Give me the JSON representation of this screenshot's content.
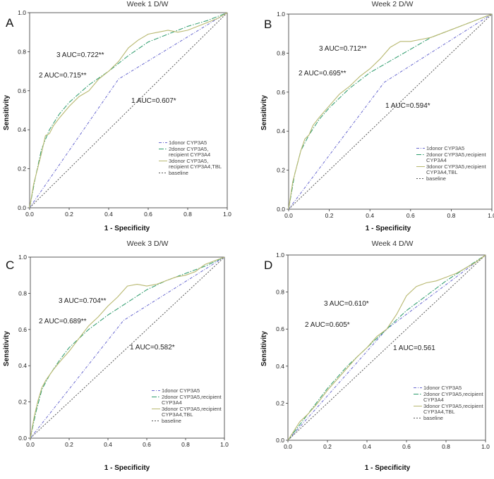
{
  "chart_data": [
    {
      "type": "line",
      "letter": "A",
      "title": "Week 1 D/W",
      "xlabel": "1 - Specificity",
      "ylabel": "Sensitivity",
      "xlim": [
        0,
        1
      ],
      "ylim": [
        0,
        1
      ],
      "ticks": [
        "0.0",
        "0.2",
        "0.4",
        "0.6",
        "0.8",
        "1.0"
      ],
      "annotations": [
        "3 AUC=0.722**",
        "2 AUC=0.715**",
        "1 AUC=0.607*"
      ],
      "legend": [
        [
          "1donor CYP3A5"
        ],
        [
          "2donor CYP3A5,",
          "recipient CYP3A4"
        ],
        [
          "3donor CYP3A5,",
          "recipient CYP3A4,TBL"
        ],
        [
          "baseline"
        ]
      ],
      "series": [
        {
          "name": "1",
          "color": "#6a6ad0",
          "x": [
            0,
            0.45,
            1
          ],
          "y": [
            0,
            0.66,
            1
          ]
        },
        {
          "name": "2",
          "color": "#2a9a6a",
          "x": [
            0,
            0.03,
            0.06,
            0.1,
            0.15,
            0.2,
            0.3,
            0.4,
            0.5,
            0.6,
            0.7,
            0.8,
            0.9,
            1
          ],
          "y": [
            0,
            0.16,
            0.3,
            0.4,
            0.48,
            0.54,
            0.63,
            0.7,
            0.78,
            0.85,
            0.89,
            0.93,
            0.96,
            1
          ]
        },
        {
          "name": "3",
          "color": "#b8b870",
          "x": [
            0,
            0.02,
            0.04,
            0.06,
            0.08,
            0.1,
            0.12,
            0.15,
            0.2,
            0.25,
            0.3,
            0.35,
            0.4,
            0.45,
            0.5,
            0.55,
            0.6,
            0.65,
            0.7,
            0.75,
            0.8,
            0.85,
            0.9,
            0.95,
            1
          ],
          "y": [
            0,
            0.12,
            0.2,
            0.28,
            0.37,
            0.38,
            0.42,
            0.46,
            0.52,
            0.57,
            0.6,
            0.66,
            0.7,
            0.75,
            0.82,
            0.86,
            0.89,
            0.9,
            0.91,
            0.9,
            0.91,
            0.93,
            0.95,
            0.97,
            1
          ]
        },
        {
          "name": "baseline",
          "color": "#555555",
          "x": [
            0,
            1
          ],
          "y": [
            0,
            1
          ]
        }
      ]
    },
    {
      "type": "line",
      "letter": "B",
      "title": "Week 2 D/W",
      "xlabel": "1 - Specificity",
      "ylabel": "Sensitivity",
      "xlim": [
        0,
        1
      ],
      "ylim": [
        0,
        1
      ],
      "ticks": [
        "0.0",
        "0.2",
        "0.4",
        "0.6",
        "0.8",
        "1.0"
      ],
      "annotations": [
        "3 AUC=0.712**",
        "2 AUC=0.695**",
        "1 AUC=0.594*"
      ],
      "legend": [
        [
          "1donor CYP3A5"
        ],
        [
          "2donor CYP3A5,recipient",
          "CYP3A4"
        ],
        [
          "3donor CYP3A5,recipient",
          "CYP3A4,TBL"
        ],
        [
          "baseline"
        ]
      ],
      "series": [
        {
          "name": "1",
          "color": "#6a6ad0",
          "x": [
            0,
            0.47,
            1
          ],
          "y": [
            0,
            0.65,
            1
          ]
        },
        {
          "name": "2",
          "color": "#2a9a6a",
          "x": [
            0,
            0.03,
            0.06,
            0.1,
            0.15,
            0.2,
            0.3,
            0.4,
            0.5,
            0.6,
            0.7,
            0.8,
            0.9,
            1
          ],
          "y": [
            0,
            0.18,
            0.3,
            0.38,
            0.46,
            0.52,
            0.62,
            0.7,
            0.76,
            0.82,
            0.88,
            0.92,
            0.96,
            1
          ]
        },
        {
          "name": "3",
          "color": "#b8b870",
          "x": [
            0,
            0.02,
            0.04,
            0.06,
            0.08,
            0.1,
            0.12,
            0.15,
            0.2,
            0.25,
            0.3,
            0.35,
            0.4,
            0.45,
            0.5,
            0.55,
            0.6,
            0.65,
            0.7,
            0.75,
            0.8,
            0.85,
            0.9,
            0.95,
            1
          ],
          "y": [
            0,
            0.14,
            0.22,
            0.3,
            0.36,
            0.38,
            0.43,
            0.47,
            0.53,
            0.59,
            0.63,
            0.68,
            0.72,
            0.77,
            0.83,
            0.86,
            0.86,
            0.87,
            0.88,
            0.9,
            0.92,
            0.94,
            0.96,
            0.98,
            1
          ]
        },
        {
          "name": "baseline",
          "color": "#555555",
          "x": [
            0,
            1
          ],
          "y": [
            0,
            1
          ]
        }
      ]
    },
    {
      "type": "line",
      "letter": "C",
      "title": "Week 3 D/W",
      "xlabel": "1 - Specificity",
      "ylabel": "Sensitivity",
      "xlim": [
        0,
        1
      ],
      "ylim": [
        0,
        1
      ],
      "ticks": [
        "0.0",
        "0.2",
        "0.4",
        "0.6",
        "0.8",
        "1.0"
      ],
      "annotations": [
        "3 AUC=0.704**",
        "2 AUC=0.689**",
        "1 AUC=0.582*"
      ],
      "legend": [
        [
          "1donor CYP3A5"
        ],
        [
          "2donor CYP3A5,recipient",
          "CYP3A4"
        ],
        [
          "3donor CYP3A5,recipient",
          "CYP3A4,TBL"
        ],
        [
          "baseline"
        ]
      ],
      "series": [
        {
          "name": "1",
          "color": "#6a6ad0",
          "x": [
            0,
            0.48,
            1
          ],
          "y": [
            0,
            0.65,
            1
          ]
        },
        {
          "name": "2",
          "color": "#2a9a6a",
          "x": [
            0,
            0.03,
            0.06,
            0.1,
            0.15,
            0.2,
            0.3,
            0.4,
            0.5,
            0.6,
            0.7,
            0.8,
            0.9,
            1
          ],
          "y": [
            0,
            0.15,
            0.27,
            0.35,
            0.43,
            0.5,
            0.6,
            0.68,
            0.75,
            0.82,
            0.87,
            0.91,
            0.95,
            1
          ]
        },
        {
          "name": "3",
          "color": "#b8b870",
          "x": [
            0,
            0.02,
            0.04,
            0.06,
            0.08,
            0.1,
            0.12,
            0.15,
            0.2,
            0.25,
            0.3,
            0.35,
            0.4,
            0.45,
            0.5,
            0.55,
            0.6,
            0.65,
            0.7,
            0.75,
            0.8,
            0.85,
            0.9,
            0.95,
            1
          ],
          "y": [
            0,
            0.12,
            0.21,
            0.28,
            0.32,
            0.35,
            0.38,
            0.42,
            0.48,
            0.55,
            0.62,
            0.67,
            0.73,
            0.78,
            0.84,
            0.85,
            0.84,
            0.85,
            0.87,
            0.89,
            0.9,
            0.92,
            0.96,
            0.98,
            1
          ]
        },
        {
          "name": "baseline",
          "color": "#555555",
          "x": [
            0,
            1
          ],
          "y": [
            0,
            1
          ]
        }
      ]
    },
    {
      "type": "line",
      "letter": "D",
      "title": "Week 4 D/W",
      "xlabel": "1 - Specificity",
      "ylabel": "Sensitivity",
      "xlim": [
        0,
        1
      ],
      "ylim": [
        0,
        1
      ],
      "ticks": [
        "0.0",
        "0.2",
        "0.4",
        "0.6",
        "0.8",
        "1.0"
      ],
      "annotations": [
        "3 AUC=0.610*",
        "2 AUC=0.605*",
        "1 AUC=0.561"
      ],
      "legend": [
        [
          "1donor CYP3A5"
        ],
        [
          "2donor CYP3A5,recipient",
          "CYP3A4"
        ],
        [
          "3donor CYP3A5,recipient",
          "CYP3A4,TBL"
        ],
        [
          "baseline"
        ]
      ],
      "series": [
        {
          "name": "1",
          "color": "#6a6ad0",
          "x": [
            0,
            0.5,
            1
          ],
          "y": [
            0,
            0.6,
            1
          ]
        },
        {
          "name": "2",
          "color": "#2a9a6a",
          "x": [
            0,
            0.05,
            0.1,
            0.15,
            0.2,
            0.3,
            0.4,
            0.5,
            0.6,
            0.7,
            0.8,
            0.9,
            1
          ],
          "y": [
            0,
            0.07,
            0.14,
            0.21,
            0.28,
            0.4,
            0.5,
            0.6,
            0.7,
            0.78,
            0.86,
            0.93,
            1
          ]
        },
        {
          "name": "3",
          "color": "#b8b870",
          "x": [
            0,
            0.03,
            0.06,
            0.1,
            0.15,
            0.2,
            0.25,
            0.3,
            0.35,
            0.4,
            0.45,
            0.5,
            0.55,
            0.6,
            0.65,
            0.7,
            0.75,
            0.8,
            0.85,
            0.9,
            0.95,
            1
          ],
          "y": [
            0,
            0.05,
            0.1,
            0.14,
            0.2,
            0.27,
            0.33,
            0.39,
            0.45,
            0.5,
            0.56,
            0.6,
            0.68,
            0.78,
            0.83,
            0.85,
            0.86,
            0.88,
            0.9,
            0.93,
            0.96,
            1
          ]
        },
        {
          "name": "baseline",
          "color": "#555555",
          "x": [
            0,
            1
          ],
          "y": [
            0,
            1
          ]
        }
      ]
    }
  ]
}
